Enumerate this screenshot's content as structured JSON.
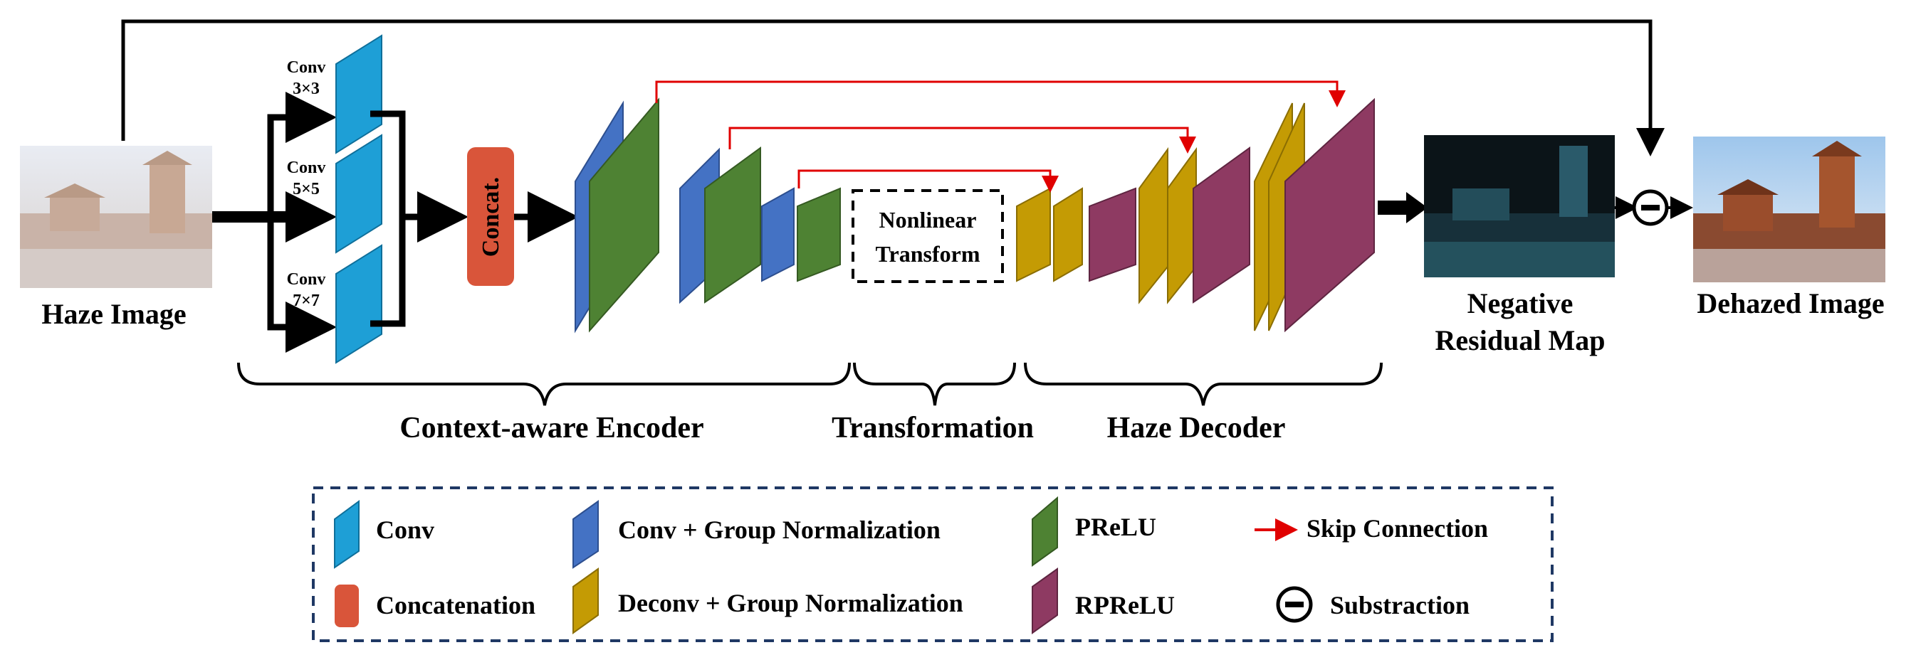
{
  "labels": {
    "haze_image": "Haze Image",
    "conv": "Conv",
    "conv_3": "3×3",
    "conv_5": "5×5",
    "conv_7": "7×7",
    "concat": "Concat.",
    "nonlinear": "Nonlinear",
    "transform": "Transform",
    "negative": "Negative",
    "residual_map": "Residual Map",
    "dehazed_image": "Dehazed Image",
    "encoder": "Context-aware Encoder",
    "transformation": "Transformation",
    "decoder": "Haze Decoder"
  },
  "legend": {
    "conv": "Conv",
    "conv_gn": "Conv + Group Normalization",
    "prelu": "PReLU",
    "skip": "Skip Connection",
    "concatenation": "Concatenation",
    "deconv_gn": "Deconv + Group Normalization",
    "rprelu": "RPReLU",
    "subtraction": "Substraction"
  },
  "colors": {
    "conv": "#1e9fd6",
    "conv_gn": "#4472c4",
    "prelu": "#4e8233",
    "deconv_gn": "#c49b04",
    "rprelu": "#8e3a62",
    "concat": "#d9553a",
    "skip": "#e00000",
    "legend_border": "#1f3864"
  }
}
